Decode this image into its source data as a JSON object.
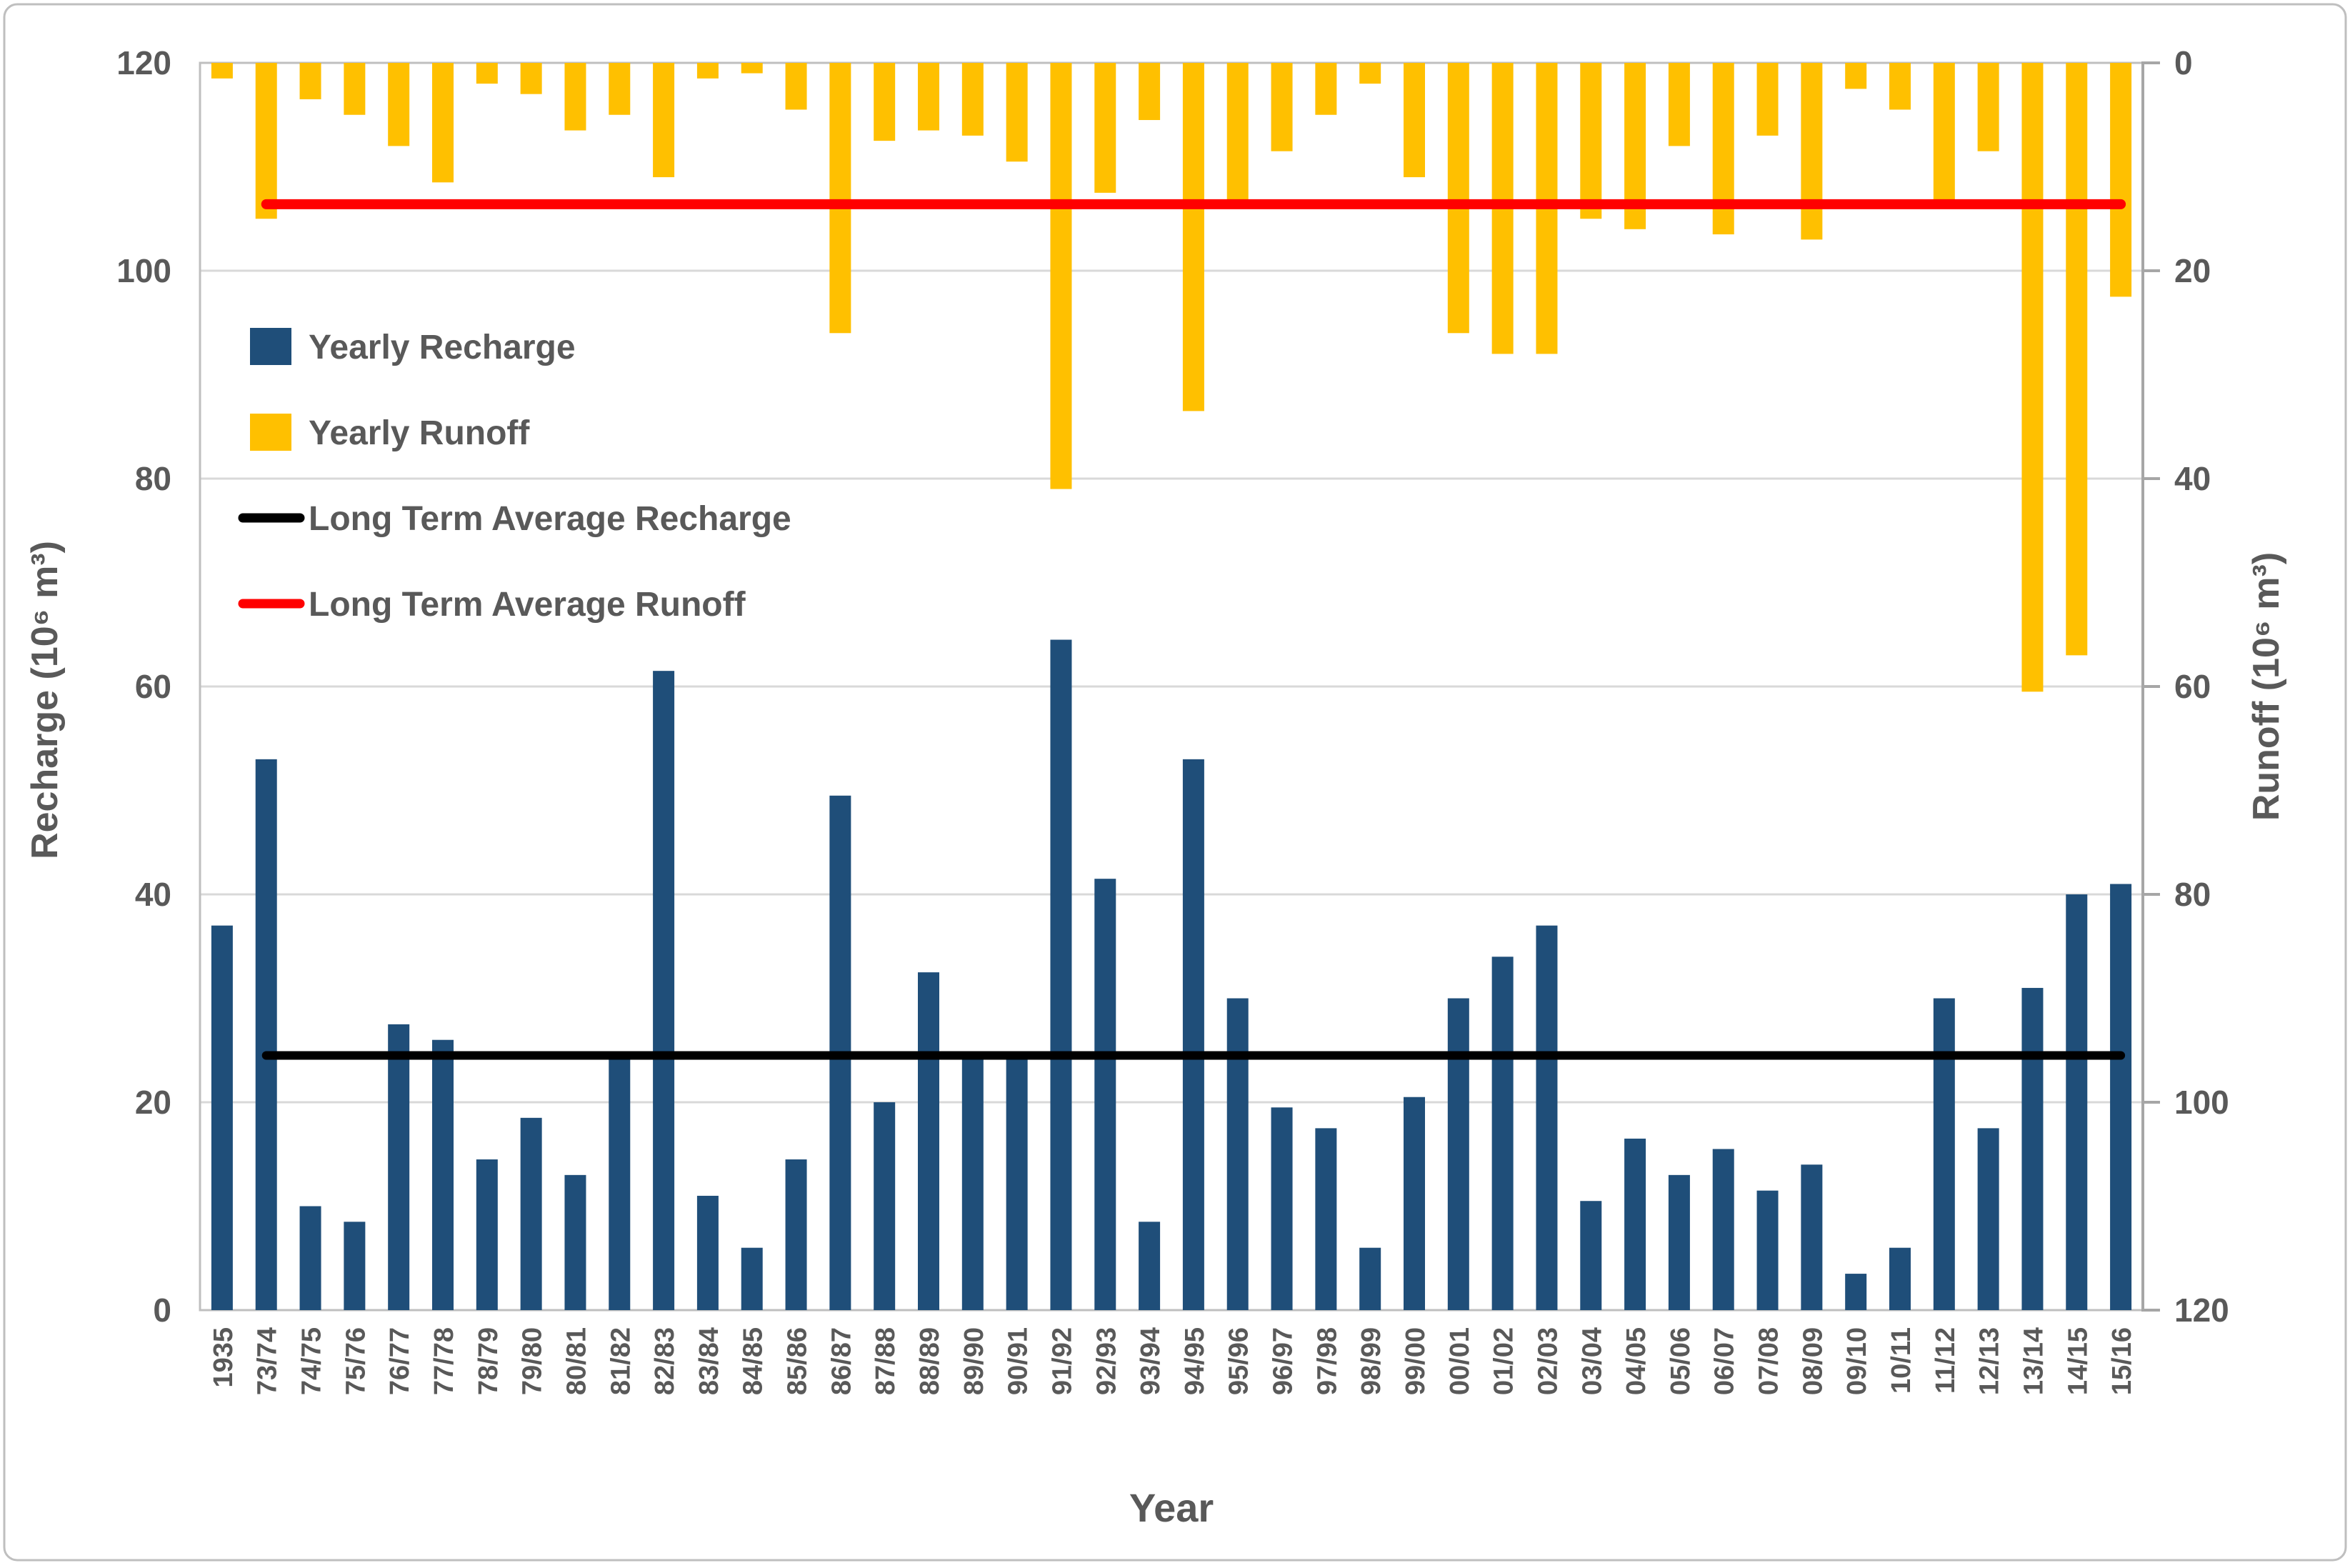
{
  "chart_data": {
    "type": "bar",
    "title": "",
    "xlabel": "Year",
    "categories": [
      "1935",
      "73/74",
      "74/75",
      "75/76",
      "76/77",
      "77/78",
      "78/79",
      "79/80",
      "80/81",
      "81/82",
      "82/83",
      "83/84",
      "84/85",
      "85/86",
      "86/87",
      "87/88",
      "88/89",
      "89/90",
      "90/91",
      "91/92",
      "92/93",
      "93/94",
      "94/95",
      "95/96",
      "96/97",
      "97/98",
      "98/99",
      "99/00",
      "00/01",
      "01/02",
      "02/03",
      "03/04",
      "04/05",
      "05/06",
      "06/07",
      "07/08",
      "08/09",
      "09/10",
      "10/11",
      "11/12",
      "12/13",
      "13/14",
      "14/15",
      "15/16"
    ],
    "series": [
      {
        "name": "Yearly Recharge",
        "axis": "left",
        "color": "#1F4E79",
        "values": [
          37,
          53,
          10,
          8.5,
          27.5,
          26,
          14.5,
          18.5,
          13,
          24.5,
          61.5,
          11,
          6,
          14.5,
          49.5,
          20,
          32.5,
          24.5,
          24.5,
          64.5,
          41.5,
          8.5,
          53,
          30,
          19.5,
          17.5,
          6,
          20.5,
          30,
          34,
          37,
          10.5,
          16.5,
          13,
          15.5,
          11.5,
          14,
          3.5,
          6,
          30,
          17.5,
          31,
          40,
          41
        ]
      },
      {
        "name": "Yearly Runoff",
        "axis": "right",
        "color": "#FFC000",
        "values": [
          1.5,
          15,
          3.5,
          5,
          8,
          11.5,
          2,
          3,
          6.5,
          5,
          11,
          1.5,
          1,
          4.5,
          26,
          7.5,
          6.5,
          7,
          9.5,
          41,
          12.5,
          5.5,
          33.5,
          13.5,
          8.5,
          5,
          2,
          11,
          26,
          28,
          28,
          15,
          16,
          8,
          16.5,
          7,
          17,
          2.5,
          4.5,
          13.5,
          8.5,
          60.5,
          57,
          22.5
        ]
      }
    ],
    "reference_lines": [
      {
        "name": "Long Term Average Recharge",
        "axis": "left",
        "value": 24.5,
        "color": "#000000",
        "span_from": "73/74",
        "span_to": "15/16"
      },
      {
        "name": "Long Term Average Runoff",
        "axis": "right",
        "value": 13.6,
        "color": "#FF0000",
        "span_from": "73/74",
        "span_to": "15/16"
      }
    ],
    "left_axis": {
      "label": "Recharge (10⁶ m³)",
      "min": 0,
      "max": 120,
      "step": 20,
      "ticks": [
        120,
        100,
        80,
        60,
        40,
        20,
        0
      ]
    },
    "right_axis": {
      "label": "Runoff  (10⁶ m³)",
      "min": 0,
      "max": 120,
      "step": 20,
      "inverted": true,
      "ticks": [
        0,
        20,
        40,
        60,
        80,
        100,
        120
      ]
    },
    "grid": true,
    "legend_position": "inside-top-left",
    "legend": [
      {
        "label": "Yearly Recharge",
        "swatch": "square",
        "color": "#1F4E79"
      },
      {
        "label": "Yearly Runoff",
        "swatch": "square",
        "color": "#FFC000"
      },
      {
        "label": "Long Term Average Recharge",
        "swatch": "line",
        "color": "#000000"
      },
      {
        "label": "Long Term Average Runoff",
        "swatch": "line",
        "color": "#FF0000"
      }
    ],
    "colors": {
      "gridline": "#D9D9D9",
      "plot_border": "#BFBFBF",
      "axis_line": "#A6A6A6",
      "text": "#595959",
      "background": "#FFFFFF"
    }
  }
}
